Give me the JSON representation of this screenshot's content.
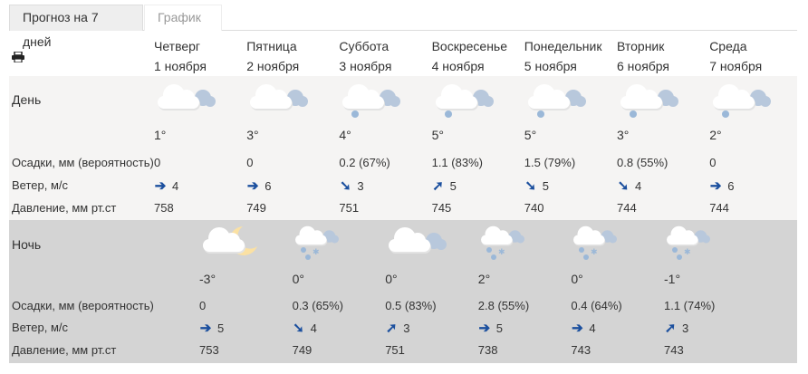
{
  "tabs": [
    {
      "label": "Прогноз на 7 дней",
      "active": true
    },
    {
      "label": "График",
      "active": false
    }
  ],
  "print_icon": "printer-icon",
  "labels": {
    "day": "День",
    "night": "Ночь",
    "precip": "Осадки, мм (вероятность)",
    "wind": "Ветер, м/с",
    "pressure": "Давление, мм рт.ст"
  },
  "colors": {
    "day_bg": "#f5f4f3",
    "night_bg": "#d4d4d4",
    "arrow": "#1b4f9e"
  },
  "days": [
    {
      "weekday": "Четверг",
      "date": "1 ноября",
      "icon": "cloudy",
      "temp": "1°",
      "precip": "0",
      "wind_dir": "east",
      "wind": "4",
      "pressure": "758"
    },
    {
      "weekday": "Пятница",
      "date": "2 ноября",
      "icon": "cloudy",
      "temp": "3°",
      "precip": "0",
      "wind_dir": "east",
      "wind": "6",
      "pressure": "749"
    },
    {
      "weekday": "Суббота",
      "date": "3 ноября",
      "icon": "cloudy-light-rain",
      "temp": "4°",
      "precip": "0.2 (67%)",
      "wind_dir": "southeast",
      "wind": "3",
      "pressure": "751"
    },
    {
      "weekday": "Воскресенье",
      "date": "4 ноября",
      "icon": "cloudy-light-rain",
      "temp": "5°",
      "precip": "1.1 (83%)",
      "wind_dir": "northeast",
      "wind": "5",
      "pressure": "745"
    },
    {
      "weekday": "Понедельник",
      "date": "5 ноября",
      "icon": "cloudy-light-rain",
      "temp": "5°",
      "precip": "1.5 (79%)",
      "wind_dir": "southeast",
      "wind": "5",
      "pressure": "740"
    },
    {
      "weekday": "Вторник",
      "date": "6 ноября",
      "icon": "cloudy-light-rain",
      "temp": "3°",
      "precip": "0.8 (55%)",
      "wind_dir": "southeast",
      "wind": "4",
      "pressure": "744"
    },
    {
      "weekday": "Среда",
      "date": "7 ноября",
      "icon": "cloudy-light-rain",
      "temp": "2°",
      "precip": "0",
      "wind_dir": "east",
      "wind": "6",
      "pressure": "744"
    }
  ],
  "nights": [
    {
      "icon": "cloud-moon",
      "temp": "-3°",
      "precip": "0",
      "wind_dir": "east",
      "wind": "5",
      "pressure": "753"
    },
    {
      "icon": "rain-snow",
      "temp": "0°",
      "precip": "0.3 (65%)",
      "wind_dir": "southeast",
      "wind": "4",
      "pressure": "749"
    },
    {
      "icon": "cloudy",
      "temp": "0°",
      "precip": "0.5 (83%)",
      "wind_dir": "northeast",
      "wind": "3",
      "pressure": "751"
    },
    {
      "icon": "rain-snow",
      "temp": "2°",
      "precip": "2.8 (55%)",
      "wind_dir": "east",
      "wind": "5",
      "pressure": "738"
    },
    {
      "icon": "rain-snow",
      "temp": "0°",
      "precip": "0.4 (64%)",
      "wind_dir": "east",
      "wind": "4",
      "pressure": "743"
    },
    {
      "icon": "rain-snow",
      "temp": "-1°",
      "precip": "1.1 (74%)",
      "wind_dir": "northeast",
      "wind": "3",
      "pressure": "743"
    }
  ]
}
